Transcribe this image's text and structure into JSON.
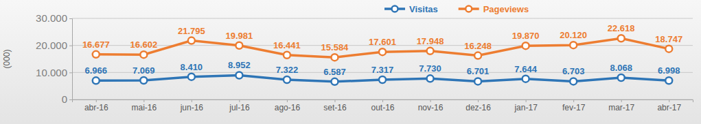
{
  "chart_data": {
    "type": "line",
    "y_label": "(000)",
    "categories": [
      "abr-16",
      "mai-16",
      "jun-16",
      "jul-16",
      "ago-16",
      "set-16",
      "out-16",
      "nov-16",
      "dez-16",
      "jan-17",
      "fev-17",
      "mar-17",
      "abr-17"
    ],
    "series": [
      {
        "name": "Visitas",
        "color": "#2e75b6",
        "marker": "circle",
        "values": [
          6966,
          7069,
          8410,
          8952,
          7322,
          6587,
          7317,
          7730,
          6701,
          7644,
          6703,
          8068,
          6998
        ],
        "value_labels": [
          "6.966",
          "7.069",
          "8.410",
          "8.952",
          "7.322",
          "6.587",
          "7.317",
          "7.730",
          "6.701",
          "7.644",
          "6.703",
          "8.068",
          "6.998"
        ]
      },
      {
        "name": "Pageviews",
        "color": "#ed7d31",
        "marker": "circle",
        "values": [
          16677,
          16602,
          21795,
          19981,
          16441,
          15584,
          17601,
          17948,
          16248,
          19870,
          20120,
          22618,
          18747
        ],
        "value_labels": [
          "16.677",
          "16.602",
          "21.795",
          "19.981",
          "16.441",
          "15.584",
          "17.601",
          "17.948",
          "16.248",
          "19.870",
          "20.120",
          "22.618",
          "18.747"
        ]
      }
    ],
    "ylim": [
      0,
      30000
    ],
    "yticks": [
      0,
      {
        "value": 10000,
        "label": "10.000"
      },
      {
        "value": 20000,
        "label": "20.000"
      },
      {
        "value": 30000,
        "label": "30.000"
      }
    ],
    "grid": true,
    "legend": "top-right",
    "data_labels": true
  }
}
